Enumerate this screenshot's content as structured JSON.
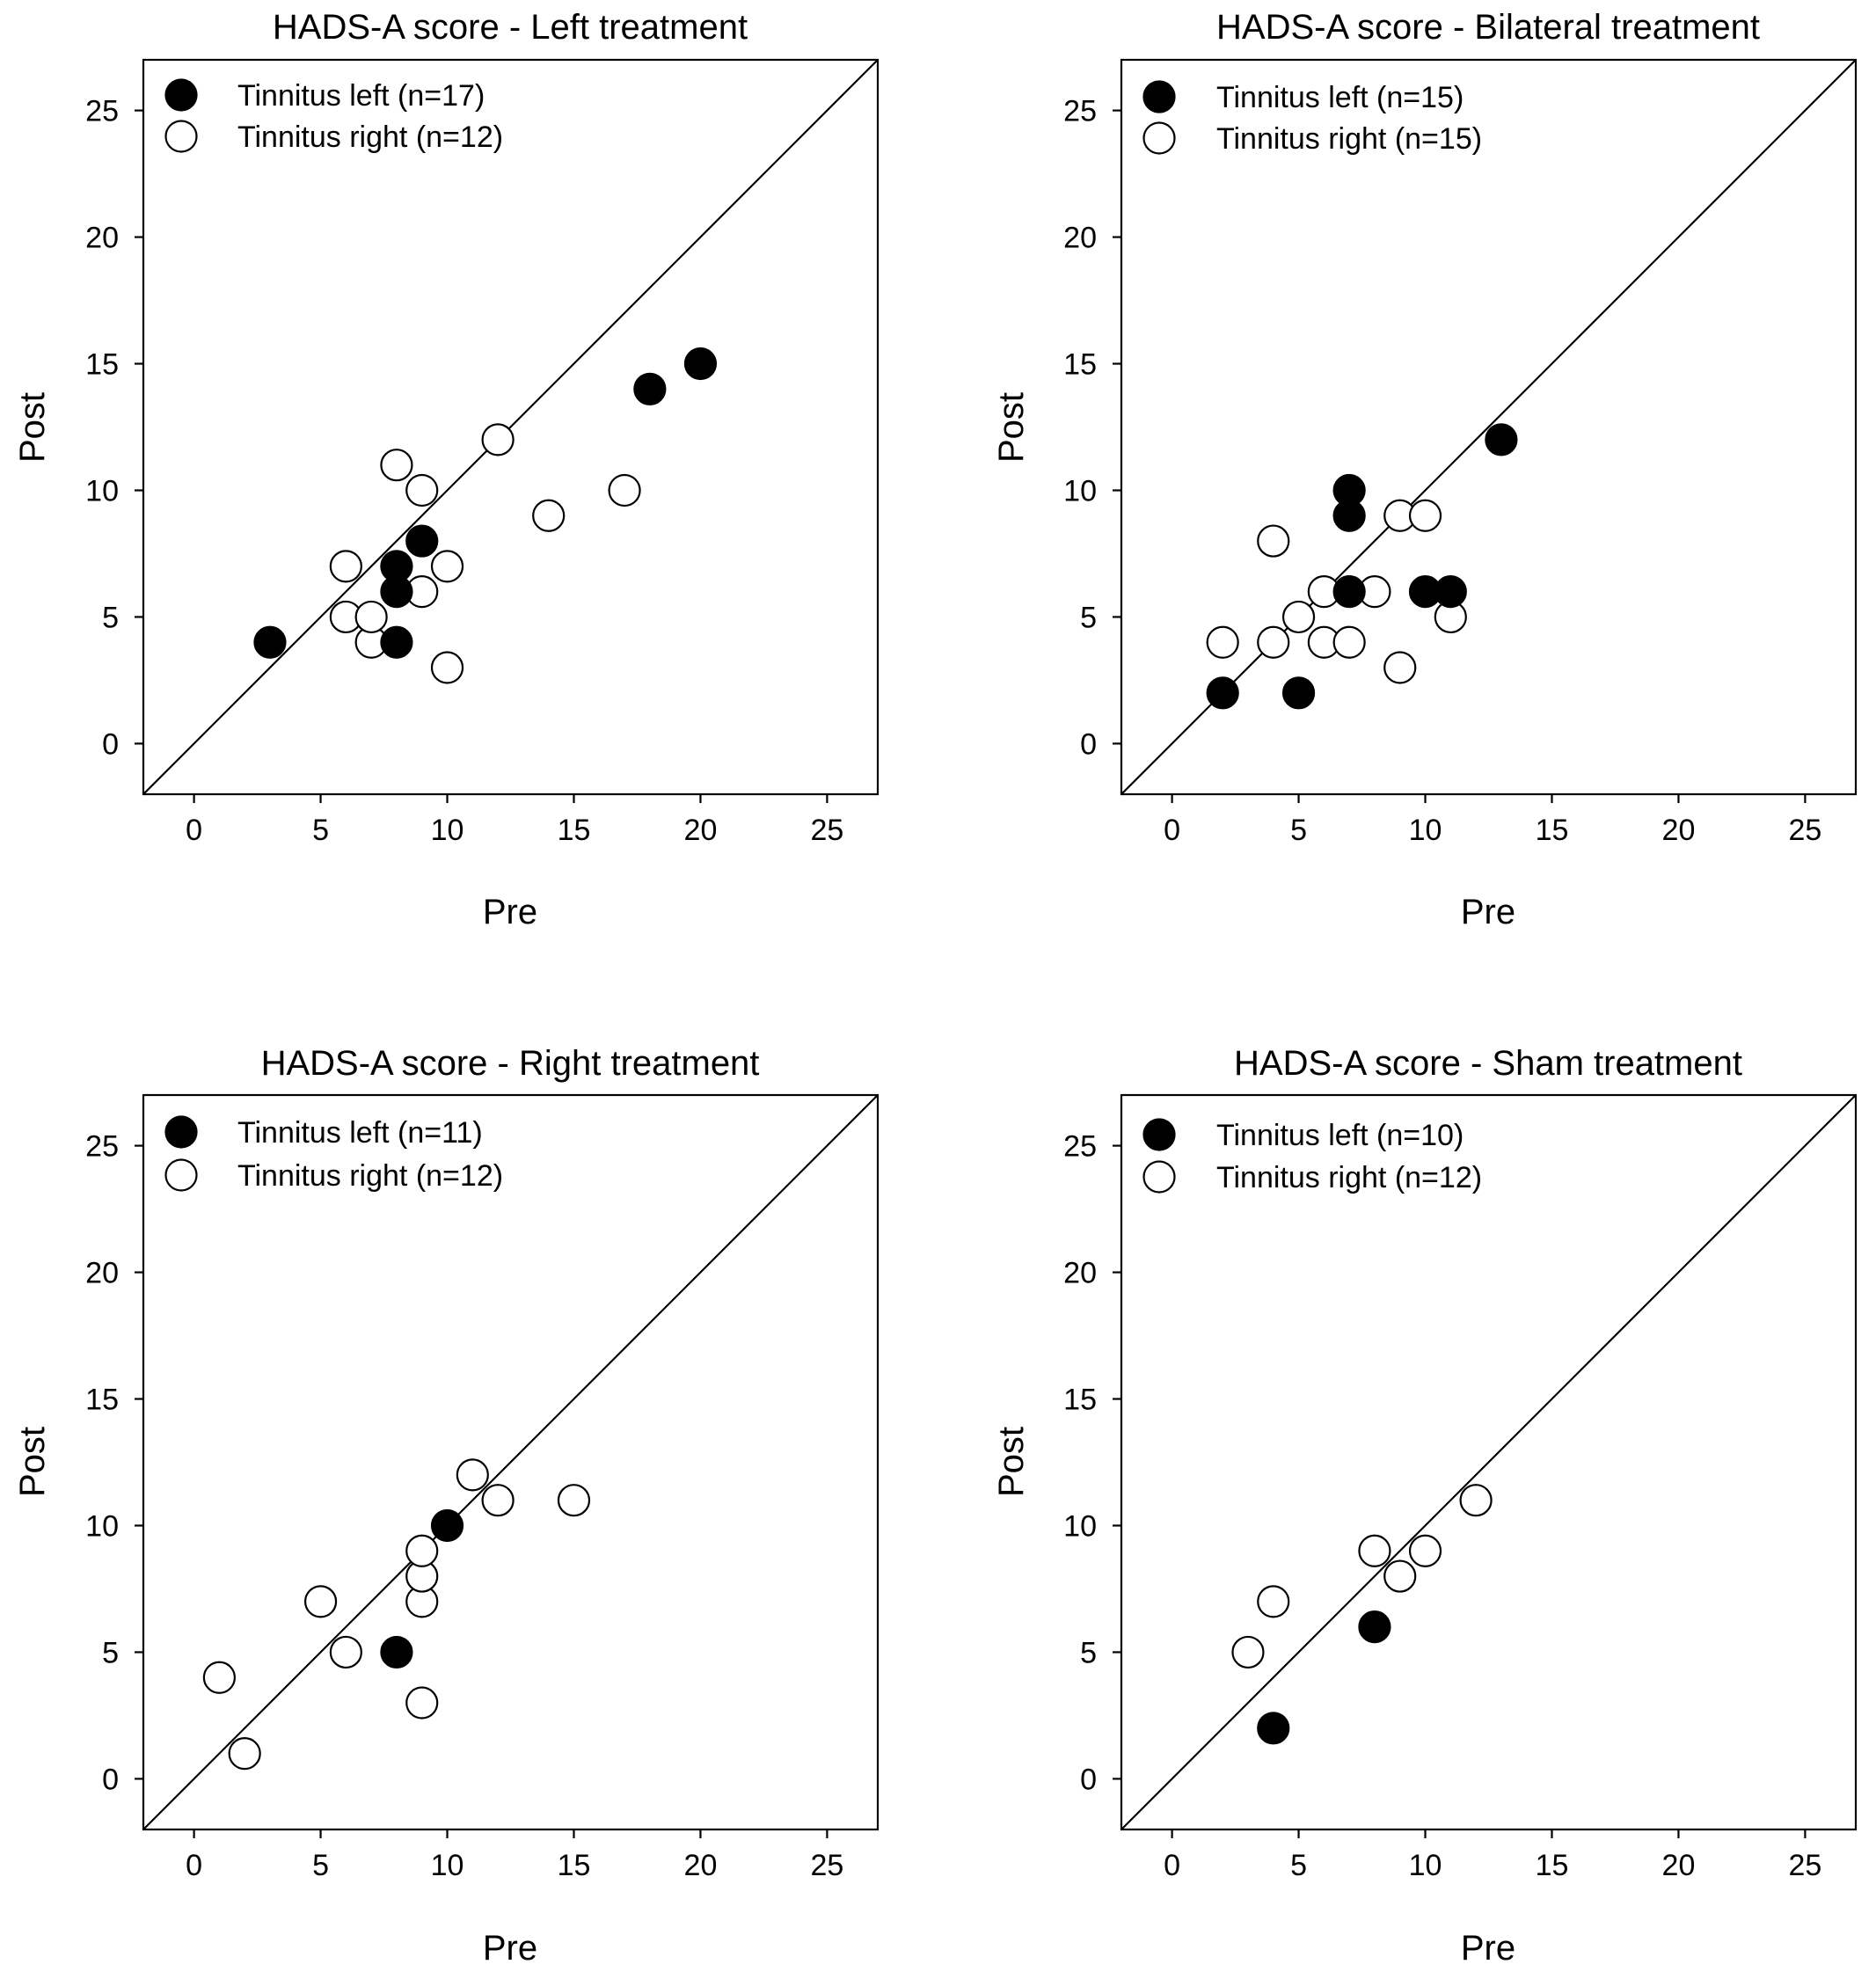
{
  "chart_data": [
    {
      "type": "scatter",
      "title": "HADS-A score - Left treatment",
      "xlabel": "Pre",
      "ylabel": "Post",
      "xlim": [
        -2,
        27
      ],
      "ylim": [
        -2,
        27
      ],
      "xticks": [
        "0",
        "5",
        "10",
        "15",
        "20",
        "25"
      ],
      "yticks": [
        "0",
        "5",
        "10",
        "15",
        "20",
        "25"
      ],
      "reference_line": "y = x",
      "series": [
        {
          "name": "Tinnitus left (n=17)",
          "marker": "filled",
          "points": [
            [
              3,
              4
            ],
            [
              8,
              4
            ],
            [
              8,
              6
            ],
            [
              8,
              7
            ],
            [
              9,
              8
            ],
            [
              18,
              14
            ],
            [
              20,
              15
            ]
          ]
        },
        {
          "name": "Tinnitus right (n=12)",
          "marker": "open",
          "points": [
            [
              6,
              5
            ],
            [
              6,
              7
            ],
            [
              7,
              4
            ],
            [
              7,
              5
            ],
            [
              8,
              11
            ],
            [
              9,
              6
            ],
            [
              9,
              10
            ],
            [
              10,
              3
            ],
            [
              10,
              7
            ],
            [
              12,
              12
            ],
            [
              14,
              9
            ],
            [
              17,
              10
            ]
          ]
        }
      ]
    },
    {
      "type": "scatter",
      "title": "HADS-A score  - Bilateral treatment",
      "xlabel": "Pre",
      "ylabel": "Post",
      "xlim": [
        -2,
        27
      ],
      "ylim": [
        -2,
        27
      ],
      "xticks": [
        "0",
        "5",
        "10",
        "15",
        "20",
        "25"
      ],
      "yticks": [
        "0",
        "5",
        "10",
        "15",
        "20",
        "25"
      ],
      "reference_line": "y = x",
      "series": [
        {
          "name": "Tinnitus left (n=15)",
          "marker": "filled",
          "points": [
            [
              2,
              2
            ],
            [
              5,
              2
            ],
            [
              7,
              6
            ],
            [
              7,
              9
            ],
            [
              7,
              10
            ],
            [
              10,
              6
            ],
            [
              11,
              6
            ],
            [
              13,
              12
            ]
          ]
        },
        {
          "name": "Tinnitus right (n=15)",
          "marker": "open",
          "points": [
            [
              2,
              4
            ],
            [
              4,
              4
            ],
            [
              4,
              8
            ],
            [
              5,
              5
            ],
            [
              6,
              4
            ],
            [
              6,
              6
            ],
            [
              7,
              4
            ],
            [
              8,
              6
            ],
            [
              9,
              3
            ],
            [
              9,
              9
            ],
            [
              10,
              9
            ],
            [
              11,
              5
            ]
          ]
        }
      ]
    },
    {
      "type": "scatter",
      "title": "HADS-A score  - Right treatment",
      "xlabel": "Pre",
      "ylabel": "Post",
      "xlim": [
        -2,
        27
      ],
      "ylim": [
        -2,
        27
      ],
      "xticks": [
        "0",
        "5",
        "10",
        "15",
        "20",
        "25"
      ],
      "yticks": [
        "0",
        "5",
        "10",
        "15",
        "20",
        "25"
      ],
      "reference_line": "y = x",
      "series": [
        {
          "name": "Tinnitus left (n=11)",
          "marker": "filled",
          "points": [
            [
              8,
              5
            ],
            [
              10,
              10
            ]
          ]
        },
        {
          "name": "Tinnitus right (n=12)",
          "marker": "open",
          "points": [
            [
              1,
              4
            ],
            [
              2,
              1
            ],
            [
              5,
              7
            ],
            [
              6,
              5
            ],
            [
              9,
              3
            ],
            [
              9,
              7
            ],
            [
              9,
              8
            ],
            [
              9,
              9
            ],
            [
              11,
              12
            ],
            [
              12,
              11
            ],
            [
              15,
              11
            ]
          ]
        }
      ]
    },
    {
      "type": "scatter",
      "title": "HADS-A score  - Sham treatment",
      "xlabel": "Pre",
      "ylabel": "Post",
      "xlim": [
        -2,
        27
      ],
      "ylim": [
        -2,
        27
      ],
      "xticks": [
        "0",
        "5",
        "10",
        "15",
        "20",
        "25"
      ],
      "yticks": [
        "0",
        "5",
        "10",
        "15",
        "20",
        "25"
      ],
      "reference_line": "y = x",
      "series": [
        {
          "name": "Tinnitus left (n=10)",
          "marker": "filled",
          "points": [
            [
              4,
              2
            ],
            [
              8,
              6
            ]
          ]
        },
        {
          "name": "Tinnitus right (n=12)",
          "marker": "open",
          "points": [
            [
              3,
              5
            ],
            [
              4,
              7
            ],
            [
              8,
              9
            ],
            [
              9,
              8
            ],
            [
              10,
              9
            ],
            [
              12,
              11
            ]
          ]
        }
      ]
    }
  ]
}
